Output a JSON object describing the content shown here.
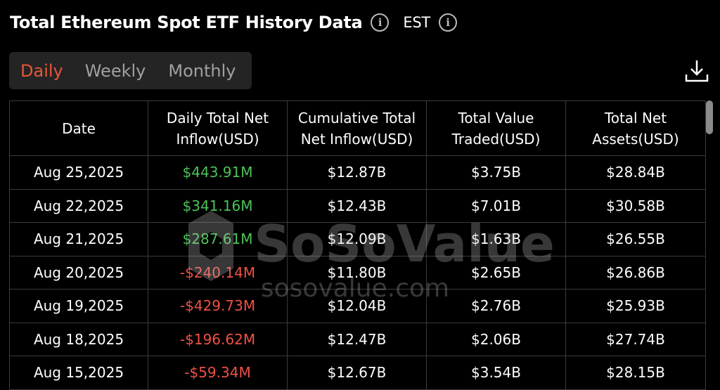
{
  "header": {
    "title": "Total Ethereum Spot ETF History Data",
    "timezone": "EST"
  },
  "tabs": {
    "items": [
      "Daily",
      "Weekly",
      "Monthly"
    ],
    "active": 0
  },
  "table": {
    "columns": [
      "Date",
      "Daily Total Net Inflow(USD)",
      "Cumulative Total Net Inflow(USD)",
      "Total Value Traded(USD)",
      "Total Net Assets(USD)"
    ],
    "rows": [
      [
        "Aug 25,2025",
        "$443.91M",
        "$12.87B",
        "$3.75B",
        "$28.84B"
      ],
      [
        "Aug 22,2025",
        "$341.16M",
        "$12.43B",
        "$7.01B",
        "$30.58B"
      ],
      [
        "Aug 21,2025",
        "$287.61M",
        "$12.09B",
        "$1.63B",
        "$26.55B"
      ],
      [
        "Aug 20,2025",
        "-$240.14M",
        "$11.80B",
        "$2.65B",
        "$26.86B"
      ],
      [
        "Aug 19,2025",
        "-$429.73M",
        "$12.04B",
        "$2.76B",
        "$25.93B"
      ],
      [
        "Aug 18,2025",
        "-$196.62M",
        "$12.47B",
        "$2.06B",
        "$27.74B"
      ],
      [
        "Aug 15,2025",
        "-$59.34M",
        "$12.67B",
        "$3.54B",
        "$28.15B"
      ]
    ]
  },
  "watermark": {
    "brand": "SoSoValue",
    "site": "sosovalue.com"
  }
}
